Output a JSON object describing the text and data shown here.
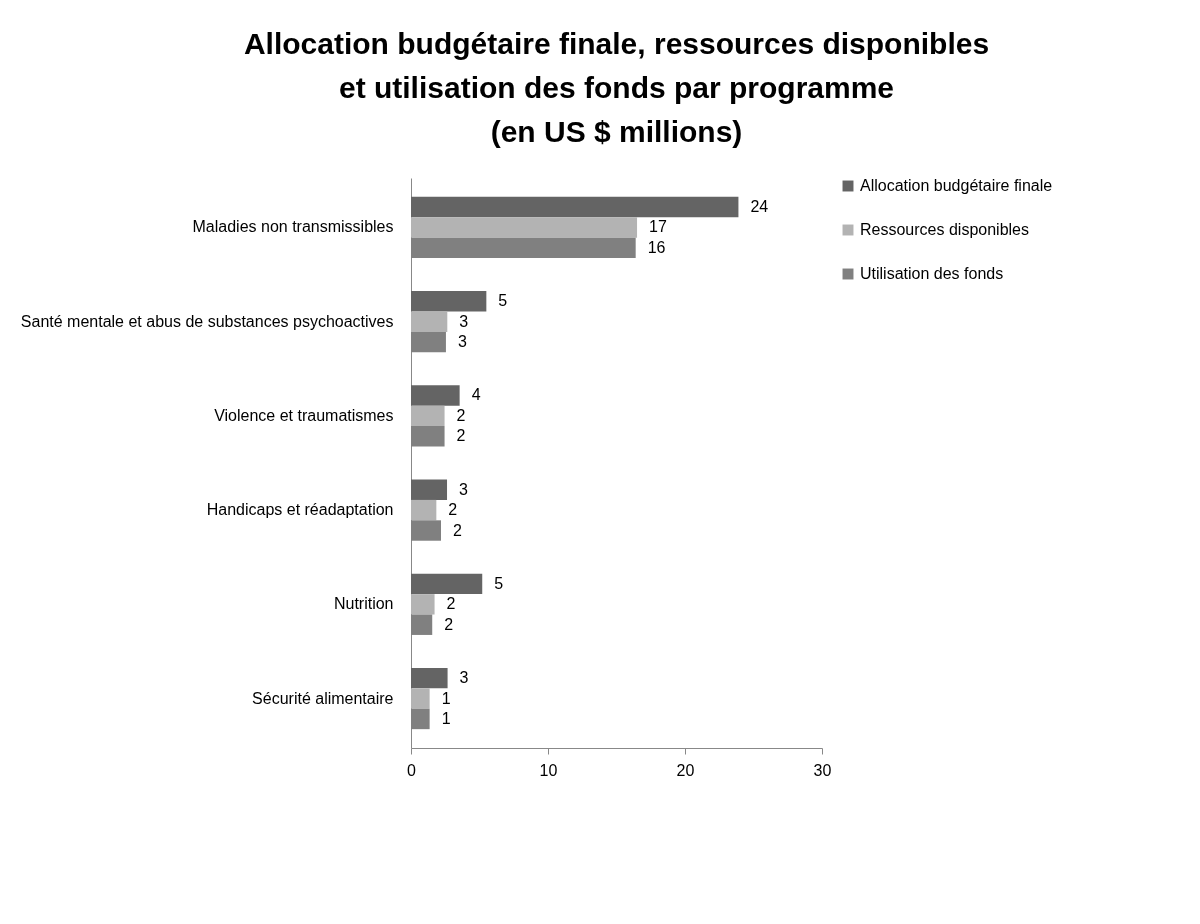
{
  "chart_data": {
    "type": "bar",
    "orientation": "horizontal",
    "title": "Allocation budgétaire finale, ressources disponibles\net utilisation des fonds par programme\n(en US $ millions)",
    "categories": [
      "Maladies non transmissibles",
      "Santé mentale et abus de substances psychoactives",
      "Violence et traumatismes",
      "Handicaps et réadaptation",
      "Nutrition",
      "Sécurité alimentaire"
    ],
    "series": [
      {
        "name": "Allocation budgétaire finale",
        "color": "#646464",
        "values": [
          23.9,
          5.5,
          3.55,
          2.63,
          5.2,
          2.67
        ],
        "value_labels": [
          "24",
          "5",
          "4",
          "3",
          "5",
          "3"
        ]
      },
      {
        "name": "Ressources disponibles",
        "color": "#b3b3b3",
        "values": [
          16.5,
          2.65,
          2.45,
          1.85,
          1.72,
          1.36
        ],
        "value_labels": [
          "17",
          "3",
          "2",
          "2",
          "2",
          "1"
        ]
      },
      {
        "name": "Utilisation des fonds",
        "color": "#808080",
        "values": [
          16.4,
          2.55,
          2.45,
          2.19,
          1.55,
          1.36
        ],
        "value_labels": [
          "16",
          "3",
          "2",
          "2",
          "2",
          "1"
        ]
      }
    ],
    "xlim": [
      0,
      30
    ],
    "xticks": [
      0,
      10,
      20,
      30
    ],
    "grid": false,
    "legend": "right"
  }
}
